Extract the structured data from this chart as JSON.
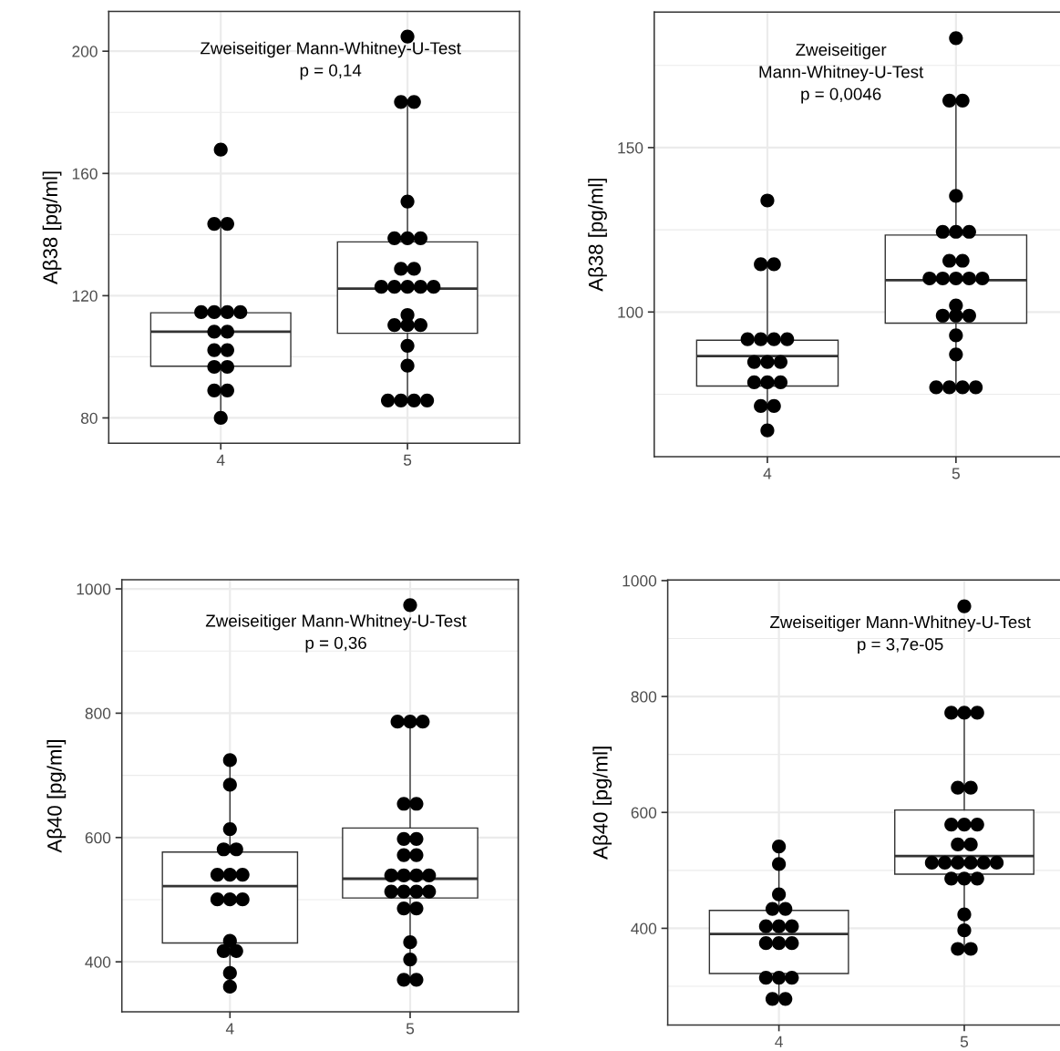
{
  "chart_data": [
    {
      "type": "box",
      "categories": [
        "4",
        "5"
      ],
      "ylabel": "Aβ38 [pg/ml]",
      "ylim": [
        71.7,
        213.0
      ],
      "yticks": [
        80,
        120,
        160,
        200
      ],
      "grid": true,
      "marker": "circle",
      "annotations": [
        "Zweiseitiger Mann-Whitney-U-Test",
        "p = 0,14"
      ],
      "boxes": [
        {
          "low": 80,
          "q1": 96.9,
          "median": 108.2,
          "q3": 114.4,
          "high": 143.5
        },
        {
          "low": 85.7,
          "q1": 107.7,
          "median": 122.3,
          "q3": 137.6,
          "high": 183.4
        }
      ],
      "series": [
        {
          "type": "scatter",
          "color": "#000000",
          "x": [
            "4",
            "4",
            "4",
            "4",
            "4",
            "4",
            "4",
            "4",
            "4",
            "4",
            "4",
            "4",
            "4",
            "4",
            "4",
            "4",
            "5",
            "5",
            "5",
            "5",
            "5",
            "5",
            "5",
            "5",
            "5",
            "5",
            "5",
            "5",
            "5",
            "5",
            "5",
            "5",
            "5",
            "5",
            "5",
            "5",
            "5",
            "5",
            "5",
            "5"
          ],
          "values": [
            167.8,
            143.5,
            143.5,
            114.6,
            114.6,
            114.6,
            114.6,
            108.2,
            108.2,
            102.2,
            102.2,
            96.7,
            96.7,
            89.0,
            89.0,
            80,
            204.8,
            183.4,
            183.4,
            150.8,
            138.8,
            138.8,
            138.8,
            128.8,
            128.8,
            122.9,
            122.9,
            122.9,
            122.9,
            122.9,
            113.7,
            110.4,
            110.4,
            110.4,
            103.6,
            97.1,
            85.7,
            85.7,
            85.7,
            85.7
          ]
        }
      ]
    },
    {
      "type": "box",
      "categories": [
        "4",
        "5"
      ],
      "ylabel": "Aβ38 [pg/ml]",
      "ylim": [
        56.0,
        191.2
      ],
      "yticks": [
        100,
        150
      ],
      "grid": true,
      "marker": "circle",
      "annotations": [
        "Zweiseitiger\nMann-Whitney-U-Test",
        "p = 0,0046"
      ],
      "boxes": [
        {
          "low": 64.0,
          "q1": 77.5,
          "median": 86.6,
          "q3": 91.4,
          "high": 114.5
        },
        {
          "low": 77.1,
          "q1": 96.6,
          "median": 109.7,
          "q3": 123.4,
          "high": 164.3
        }
      ],
      "series": [
        {
          "type": "scatter",
          "color": "#000000",
          "x": [
            "4",
            "4",
            "4",
            "4",
            "4",
            "4",
            "4",
            "4",
            "4",
            "4",
            "4",
            "4",
            "4",
            "4",
            "4",
            "4",
            "5",
            "5",
            "5",
            "5",
            "5",
            "5",
            "5",
            "5",
            "5",
            "5",
            "5",
            "5",
            "5",
            "5",
            "5",
            "5",
            "5",
            "5",
            "5",
            "5",
            "5",
            "5",
            "5",
            "5"
          ],
          "values": [
            133.9,
            114.5,
            114.5,
            91.7,
            91.7,
            91.7,
            91.7,
            84.8,
            84.8,
            84.8,
            78.6,
            78.6,
            78.6,
            71.4,
            71.4,
            64.0,
            183.3,
            164.3,
            164.3,
            135.3,
            124.4,
            124.4,
            124.4,
            115.6,
            115.6,
            110.2,
            110.2,
            110.2,
            110.2,
            110.2,
            102.0,
            98.9,
            98.9,
            98.9,
            92.9,
            87.1,
            77.1,
            77.1,
            77.1,
            77.1
          ]
        }
      ]
    },
    {
      "type": "box",
      "categories": [
        "4",
        "5"
      ],
      "ylabel": "Aβ40 [pg/ml]",
      "ylim": [
        319.6,
        1014.7
      ],
      "yticks": [
        400,
        600,
        800,
        1000
      ],
      "grid": true,
      "marker": "circle",
      "annotations": [
        "Zweiseitiger Mann-Whitney-U-Test",
        "p = 0,36"
      ],
      "boxes": [
        {
          "low": 360,
          "q1": 430.4,
          "median": 521.7,
          "q3": 576.6,
          "high": 724.5
        },
        {
          "low": 371.2,
          "q1": 502.7,
          "median": 533.7,
          "q3": 615.2,
          "high": 786.4
        }
      ],
      "series": [
        {
          "type": "scatter",
          "color": "#000000",
          "x": [
            "4",
            "4",
            "4",
            "4",
            "4",
            "4",
            "4",
            "4",
            "4",
            "4",
            "4",
            "4",
            "4",
            "4",
            "4",
            "4",
            "5",
            "5",
            "5",
            "5",
            "5",
            "5",
            "5",
            "5",
            "5",
            "5",
            "5",
            "5",
            "5",
            "5",
            "5",
            "5",
            "5",
            "5",
            "5",
            "5",
            "5",
            "5",
            "5",
            "5"
          ],
          "values": [
            724.5,
            684.8,
            613.6,
            581,
            581,
            540.2,
            540.2,
            540.2,
            500.5,
            500.5,
            500.5,
            433.7,
            417.4,
            417.4,
            382,
            360,
            973.9,
            786.4,
            786.4,
            786.4,
            654.3,
            654.3,
            597.8,
            597.8,
            571.7,
            571.7,
            539.1,
            539.1,
            539.1,
            539.1,
            513,
            513,
            513,
            513,
            485.9,
            485.9,
            431.5,
            403.8,
            371.2,
            371.2
          ]
        }
      ]
    },
    {
      "type": "box",
      "categories": [
        "4",
        "5"
      ],
      "ylabel": "Aβ40 [pg/ml]",
      "ylim": [
        233.3,
        1001
      ],
      "yticks": [
        400,
        600,
        800,
        1000
      ],
      "grid": true,
      "marker": "circle",
      "annotations": [
        "Zweiseitiger Mann-Whitney-U-Test",
        "p = 3,7e-05"
      ],
      "boxes": [
        {
          "low": 278.2,
          "q1": 321.9,
          "median": 390.1,
          "q3": 430.9,
          "high": 541.2
        },
        {
          "low": 364.5,
          "q1": 493.4,
          "median": 524.8,
          "q3": 604.1,
          "high": 772.0
        }
      ],
      "series": [
        {
          "type": "scatter",
          "color": "#000000",
          "x": [
            "4",
            "4",
            "4",
            "4",
            "4",
            "4",
            "4",
            "4",
            "4",
            "4",
            "4",
            "4",
            "4",
            "4",
            "4",
            "4",
            "5",
            "5",
            "5",
            "5",
            "5",
            "5",
            "5",
            "5",
            "5",
            "5",
            "5",
            "5",
            "5",
            "5",
            "5",
            "5",
            "5",
            "5",
            "5",
            "5",
            "5",
            "5",
            "5",
            "5"
          ],
          "values": [
            541.2,
            510.9,
            458.5,
            433.5,
            433.5,
            403.5,
            403.5,
            403.5,
            374.4,
            374.4,
            374.4,
            314.9,
            314.9,
            314.9,
            278.2,
            278.2,
            955.7,
            772.0,
            772.0,
            772.0,
            642.6,
            642.6,
            579.0,
            579.0,
            579.0,
            544.6,
            544.6,
            513.2,
            513.2,
            513.2,
            513.2,
            513.2,
            513.2,
            485.8,
            485.8,
            485.8,
            423.9,
            396.5,
            364.5,
            364.5
          ]
        }
      ]
    }
  ]
}
